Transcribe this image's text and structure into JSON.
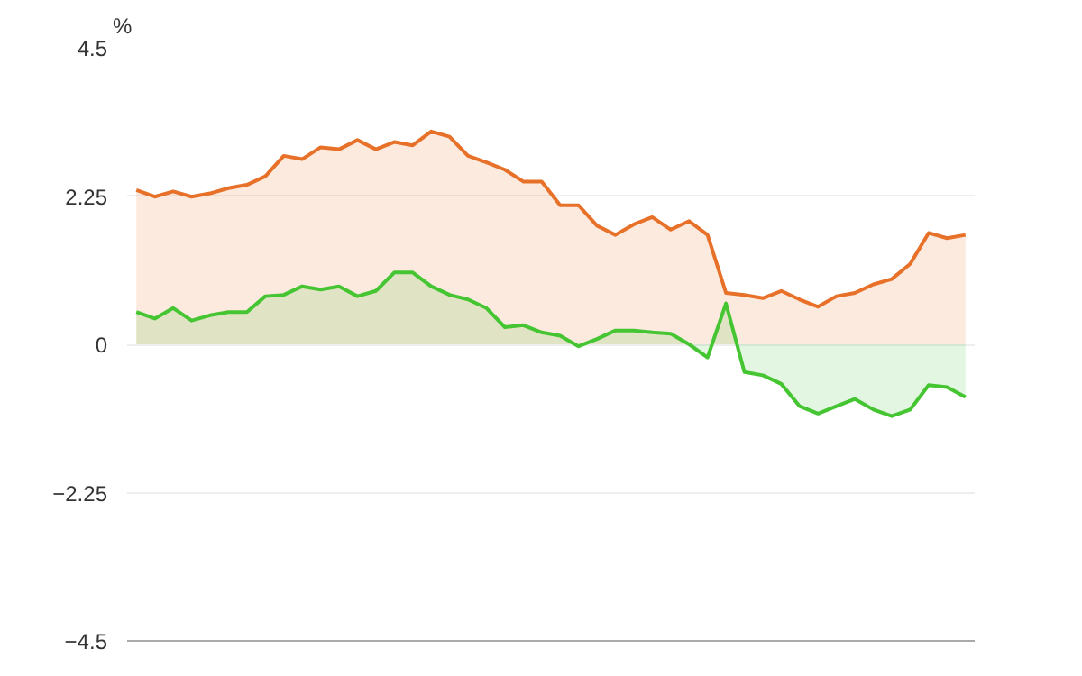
{
  "chart_data": {
    "type": "area",
    "ylabel": "%",
    "ylim": [
      -4.5,
      4.5
    ],
    "yticks": [
      4.5,
      2.25,
      0,
      -2.25,
      -4.5
    ],
    "grid": "y",
    "categories": [
      null,
      null,
      null,
      null,
      null,
      null,
      null,
      null,
      null,
      null,
      null,
      null,
      null,
      null,
      null,
      null,
      null,
      null,
      null,
      null,
      null,
      null,
      null,
      null,
      null,
      null,
      null,
      null,
      null,
      null,
      null,
      null,
      null,
      null,
      null,
      null,
      null,
      null,
      null,
      null,
      null,
      null,
      null,
      null,
      null,
      null
    ],
    "series": [
      {
        "color": "#e8712a",
        "values": [
          2.34,
          2.24,
          2.32,
          2.24,
          2.29,
          2.37,
          2.42,
          2.55,
          2.86,
          2.81,
          2.99,
          2.96,
          3.1,
          2.96,
          3.07,
          3.02,
          3.23,
          3.15,
          2.86,
          2.76,
          2.65,
          2.47,
          2.47,
          2.11,
          2.11,
          1.8,
          1.66,
          1.82,
          1.93,
          1.74,
          1.87,
          1.66,
          0.78,
          0.75,
          0.7,
          0.81,
          0.68,
          0.57,
          0.73,
          0.78,
          0.91,
          0.99,
          1.22,
          1.69,
          1.61,
          1.66
        ]
      },
      {
        "color": "#46c533",
        "values": [
          0.49,
          0.39,
          0.55,
          0.36,
          0.44,
          0.49,
          0.49,
          0.73,
          0.75,
          0.88,
          0.83,
          0.88,
          0.73,
          0.81,
          1.09,
          1.09,
          0.88,
          0.75,
          0.68,
          0.55,
          0.26,
          0.29,
          0.18,
          0.13,
          -0.03,
          0.08,
          0.21,
          0.21,
          0.18,
          0.16,
          0.0,
          -0.2,
          0.62,
          -0.42,
          -0.47,
          -0.6,
          -0.94,
          -1.05,
          -0.94,
          -0.83,
          -0.99,
          -1.09,
          -0.99,
          -0.62,
          -0.65,
          -0.8
        ]
      }
    ]
  }
}
